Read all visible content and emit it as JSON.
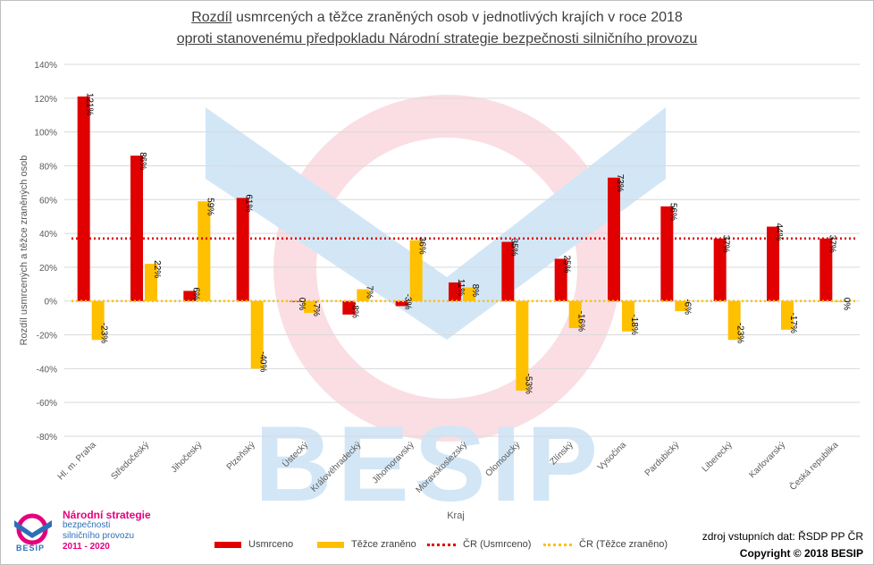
{
  "title_line1_underlined": "Rozdíl",
  "title_line1_rest": " usmrcených a těžce zraněných osob v jednotlivých krajích v roce 2018",
  "title_line2": "oproti stanovenému předpokladu Národní strategie bezpečnosti silničního provozu",
  "chart_data": {
    "type": "bar",
    "title": "Rozdíl usmrcených a těžce zraněných osob v jednotlivých krajích v roce 2018 oproti stanovenému předpokladu Národní strategie bezpečnosti silničního provozu",
    "xlabel": "Kraj",
    "ylabel": "Rozdíl usmrcených a těžce zraněných osob",
    "ylim": [
      -80,
      140
    ],
    "yticks": [
      140,
      120,
      100,
      80,
      60,
      40,
      20,
      0,
      -20,
      -40,
      -60,
      -80
    ],
    "ytick_labels": [
      "140%",
      "120%",
      "100%",
      "80%",
      "60%",
      "40%",
      "20%",
      "0%",
      "-20%",
      "-40%",
      "-60%",
      "-80%"
    ],
    "grid": true,
    "categories": [
      "Hl. m. Praha",
      "Středočeský",
      "Jihočeský",
      "Plzeňský",
      "Ústecký",
      "Královéhradecký",
      "Jihomoravský",
      "Moravskoslezský",
      "Olomoucký",
      "Zlínský",
      "Vysočina",
      "Pardubický",
      "Liberecký",
      "Karlovarský",
      "Česká republika"
    ],
    "series": [
      {
        "name": "Usmrceno",
        "color": "#e00000",
        "values": [
          121,
          86,
          6,
          61,
          0,
          -8,
          -3,
          11,
          35,
          25,
          73,
          56,
          37,
          44,
          37
        ],
        "labels": [
          "121%",
          "86%",
          "6%",
          "61%",
          "0%",
          "-8%",
          "-3%",
          "11%",
          "35%",
          "25%",
          "73%",
          "56%",
          "37%",
          "44%",
          "37%"
        ]
      },
      {
        "name": "Těžce zraněno",
        "color": "#ffc000",
        "values": [
          -23,
          22,
          59,
          -40,
          -7,
          7,
          36,
          8,
          -53,
          -16,
          -18,
          -6,
          -23,
          -17,
          0
        ],
        "labels": [
          "-23%",
          "22%",
          "59%",
          "-40%",
          "-7%",
          "7%",
          "36%",
          "8%",
          "-53%",
          "-16%",
          "-18%",
          "-6%",
          "-23%",
          "-17%",
          "0%"
        ]
      }
    ],
    "reference_lines": [
      {
        "name": "ČR (Usmrceno)",
        "color": "#e00000",
        "value": 37
      },
      {
        "name": "ČR (Těžce zraněno)",
        "color": "#ffc000",
        "value": 0
      }
    ],
    "legend_position": "bottom"
  },
  "source_text": "zdroj vstupních dat: ŘSDP PP ČR",
  "copyright_text": "Copyright © 2018  BESIP",
  "logo": {
    "title": "Národní strategie",
    "line2": "bezpečnosti",
    "line3": "silničního provozu",
    "years": "2011 - 2020",
    "brand": "BESIP"
  },
  "watermark_brand": "BESIP"
}
